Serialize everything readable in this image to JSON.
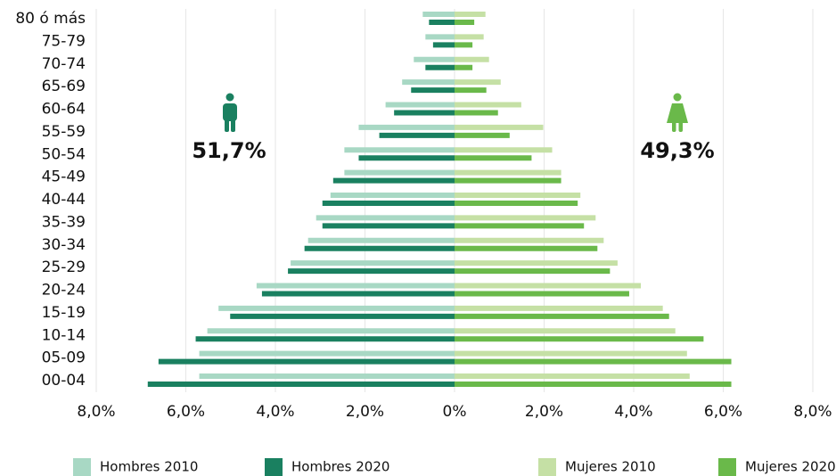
{
  "chart_data": {
    "type": "bar",
    "orientation": "horizontal",
    "categories": [
      "80 ó más",
      "75-79",
      "70-74",
      "65-69",
      "60-64",
      "55-59",
      "50-54",
      "45-49",
      "40-44",
      "35-39",
      "30-34",
      "25-29",
      "20-24",
      "15-19",
      "10-14",
      "05-09",
      "00-04"
    ],
    "series": [
      {
        "name": "Hombres 2010",
        "color": "#a8d8c4",
        "values": [
          -0.71,
          -0.65,
          -0.91,
          -1.17,
          -1.54,
          -2.14,
          -2.46,
          -2.46,
          -2.77,
          -3.09,
          -3.27,
          -3.66,
          -4.42,
          -5.27,
          -5.52,
          -5.7,
          -5.7
        ]
      },
      {
        "name": "Hombres 2020",
        "color": "#1a8060",
        "values": [
          -0.57,
          -0.48,
          -0.65,
          -0.97,
          -1.35,
          -1.68,
          -2.14,
          -2.71,
          -2.95,
          -2.95,
          -3.35,
          -3.72,
          -4.3,
          -5.01,
          -5.78,
          -6.61,
          -6.85
        ]
      },
      {
        "name": "Mujeres 2010",
        "color": "#c5e0a5",
        "values": [
          0.69,
          0.65,
          0.77,
          1.03,
          1.49,
          1.98,
          2.18,
          2.38,
          2.81,
          3.15,
          3.33,
          3.64,
          4.16,
          4.65,
          4.93,
          5.19,
          5.25
        ]
      },
      {
        "name": "Mujeres 2020",
        "color": "#6ab94a",
        "values": [
          0.44,
          0.4,
          0.4,
          0.71,
          0.97,
          1.23,
          1.72,
          2.38,
          2.75,
          2.89,
          3.19,
          3.47,
          3.9,
          4.79,
          5.56,
          6.18,
          6.18
        ]
      }
    ],
    "xlim": [
      -8,
      8
    ],
    "xticks": [
      {
        "value": -8,
        "label": "8,0%"
      },
      {
        "value": -6,
        "label": "6,0%"
      },
      {
        "value": -4,
        "label": "4,0%"
      },
      {
        "value": -2,
        "label": "2,0%"
      },
      {
        "value": 0,
        "label": "0%"
      },
      {
        "value": 2,
        "label": "2,0%"
      },
      {
        "value": 4,
        "label": "4,0%"
      },
      {
        "value": 6,
        "label": "6,0%"
      },
      {
        "value": 8,
        "label": "8,0%"
      }
    ],
    "grid": true,
    "annotations": [
      "51,7%",
      "49,3%"
    ]
  }
}
